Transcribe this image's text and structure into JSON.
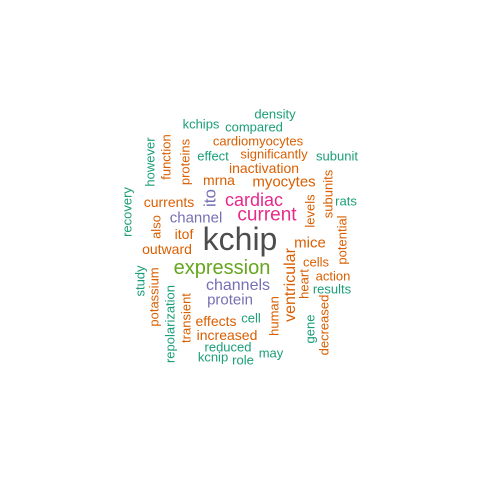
{
  "colors": {
    "teal": "#1b9e77",
    "orange": "#d95f02",
    "purple": "#7570b3",
    "magenta": "#e7298a",
    "green": "#66a61e",
    "gray": "#4d4d4d"
  },
  "words": {
    "kchip": "kchip",
    "expression": "expression",
    "current": "current",
    "cardiac": "cardiac",
    "channels": "channels",
    "channel": "channel",
    "protein": "protein",
    "ito": "ito",
    "myocytes": "myocytes",
    "mice": "mice",
    "inactivation": "inactivation",
    "mrna": "mrna",
    "currents": "currents",
    "outward": "outward",
    "itof": "itof",
    "ventricular": "ventricular",
    "increased": "increased",
    "effects": "effects",
    "cardiomyocytes": "cardiomyocytes",
    "significantly": "significantly",
    "cells": "cells",
    "action": "action",
    "potential": "potential",
    "levels": "levels",
    "heart": "heart",
    "transient": "transient",
    "potassium": "potassium",
    "repolarization": "repolarization",
    "human": "human",
    "kchips": "kchips",
    "compared": "compared",
    "density": "density",
    "effect": "effect",
    "subunit": "subunit",
    "subunits": "subunits",
    "rats": "rats",
    "results": "results",
    "proteins": "proteins",
    "function": "function",
    "however": "however",
    "recovery": "recovery",
    "also": "also",
    "study": "study",
    "cell": "cell",
    "reduced": "reduced",
    "kcnip": "kcnip",
    "role": "role",
    "may": "may",
    "gene": "gene",
    "decreased": "decreased"
  }
}
